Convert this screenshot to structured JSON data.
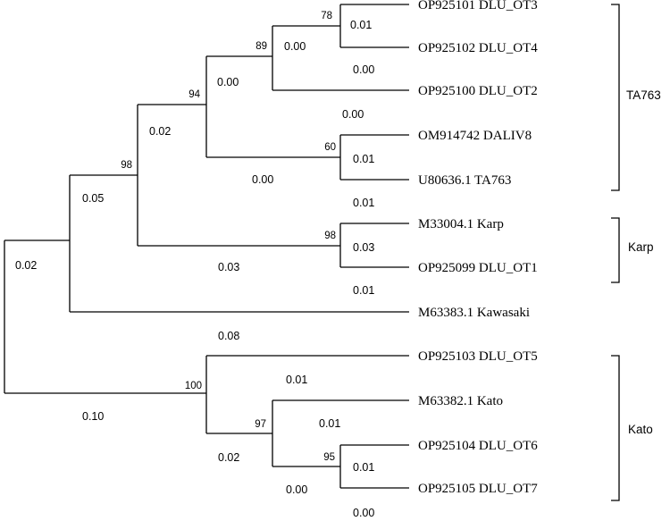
{
  "taxa": {
    "ot3": "OP925101 DLU_OT3",
    "ot4": "OP925102 DLU_OT4",
    "ot2": "OP925100 DLU_OT2",
    "daliv8": "OM914742 DALIV8",
    "ta763": "U80636.1 TA763",
    "karp": "M33004.1 Karp",
    "ot1": "OP925099 DLU_OT1",
    "kawasaki": "M63383.1 Kawasaki",
    "ot5": "OP925103 DLU_OT5",
    "kato": "M63382.1 Kato",
    "ot6": "OP925104 DLU_OT6",
    "ot7": "OP925105 DLU_OT7"
  },
  "bootstrap": {
    "n78": "78",
    "n89": "89",
    "n94": "94",
    "n60": "60",
    "n98a": "98",
    "n98b": "98",
    "n100": "100",
    "n97": "97",
    "n95": "95"
  },
  "branch_lengths": {
    "root_top": "0.02",
    "root_bottom": "0.10",
    "n98a_top": "0.05",
    "n94_top": "0.02",
    "n89_top": "0.00",
    "n78_stem": "0.00",
    "ot3": "0.01",
    "ot4": "0.00",
    "ot2": "0.00",
    "n60_stem": "0.00",
    "daliv8": "0.01",
    "ta763": "0.01",
    "n98b_stem": "0.03",
    "karp": "0.03",
    "ot1": "0.01",
    "kawasaki": "0.08",
    "ot5": "0.01",
    "n100_stem": "0.02",
    "kato": "0.01",
    "n97_stem": "0.00",
    "ot6": "0.01",
    "ot7": "0.00"
  },
  "clades": {
    "ta763": "TA763",
    "karp": "Karp",
    "kato": "Kato"
  }
}
